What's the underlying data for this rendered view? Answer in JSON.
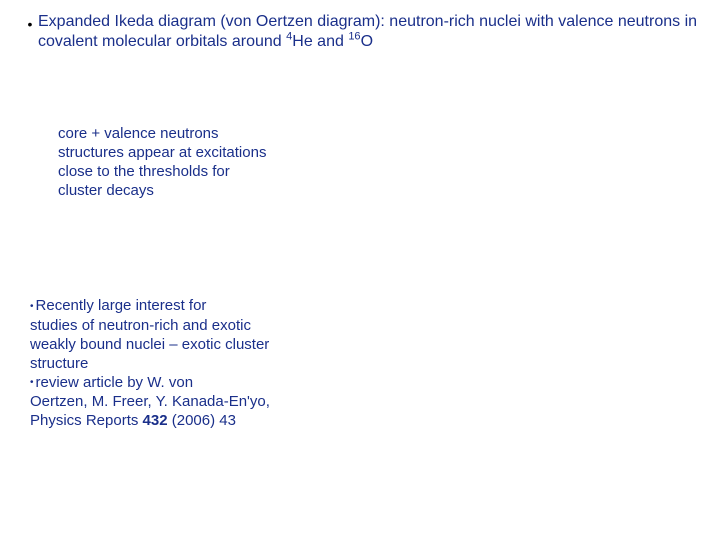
{
  "colors": {
    "text_primary": "#1a2f8a",
    "bullet": "#000000",
    "background": "#ffffff"
  },
  "top": {
    "bullet": "•",
    "line": "Expanded Ikeda diagram (von Oertzen diagram): neutron-rich nuclei with valence neutrons in covalent molecular orbitals around ",
    "he_sup": "4",
    "he": "He and ",
    "o_sup": "16",
    "o": "O"
  },
  "mid": {
    "text": "core + valence neutrons structures appear at excitations close to the thresholds for cluster decays"
  },
  "low": {
    "b1": "•",
    "p1a": "Recently large interest for",
    "p1b": "studies of neutron-rich and exotic weakly bound nuclei – exotic cluster structure",
    "b2": "•",
    "p2a": "review article by W. von",
    "p2b": "Oertzen, M. Freer, Y. Kanada-En'yo, Physics Reports ",
    "vol": "432",
    "p2c": " (2006) 43"
  }
}
